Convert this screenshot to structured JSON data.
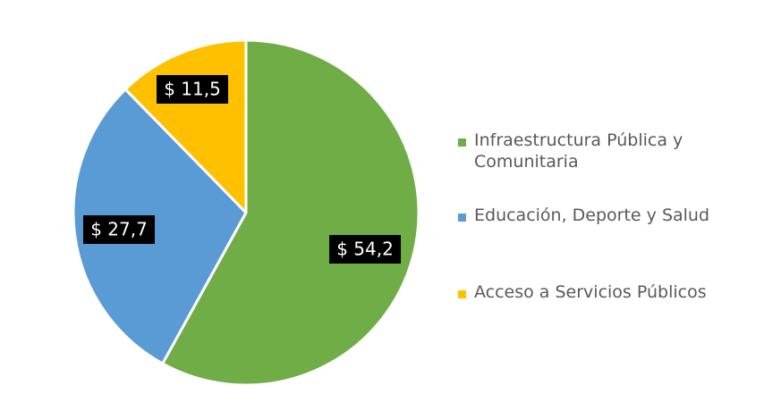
{
  "chart_data": {
    "type": "pie",
    "title": "",
    "slices": [
      {
        "label": "Infraestructura Pública y Comunitaria",
        "value": 54.2,
        "data_label": "$ 54,2",
        "color": "#70AD47"
      },
      {
        "label": "Educación, Deporte y Salud",
        "value": 27.7,
        "data_label": "$ 27,7",
        "color": "#5B9BD5"
      },
      {
        "label": "Acceso a Servicios Públicos",
        "value": 11.5,
        "data_label": "$ 11,5",
        "color": "#FFC000"
      }
    ],
    "legend": "right",
    "start_angle": "12 o'clock",
    "direction": "clockwise"
  }
}
